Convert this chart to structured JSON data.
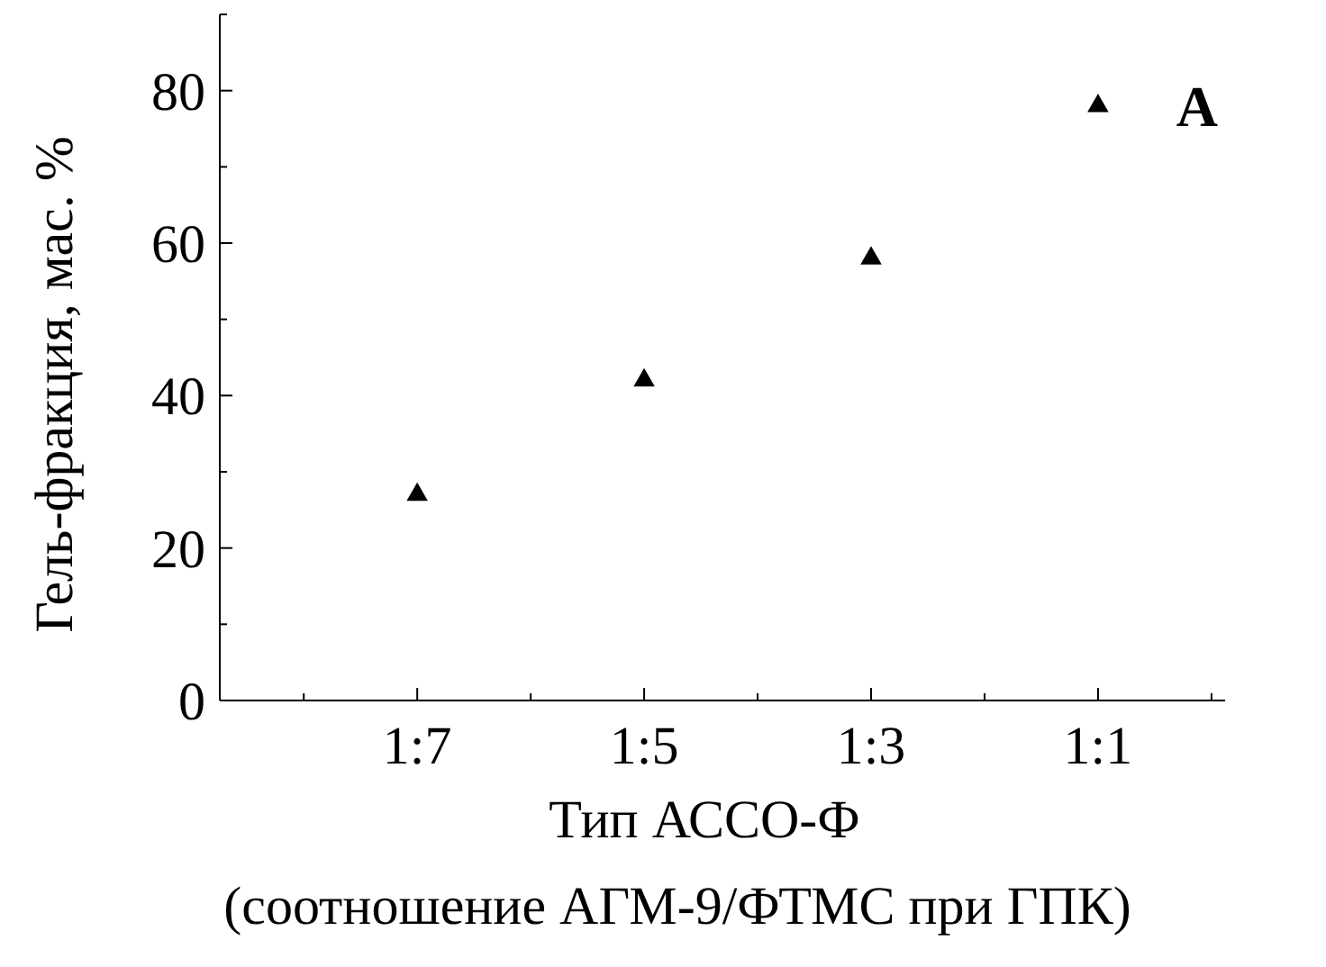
{
  "chart_data": {
    "type": "scatter",
    "xlabel": "Тип АССО-Ф\n(соотношение АГМ-9/ФТМС при ГПК)",
    "ylabel": "Гель-фракция, мас. %",
    "categories": [
      "1:7",
      "1:5",
      "1:3",
      "1:1"
    ],
    "series": [
      {
        "color": "#000000",
        "values": [
          27,
          42,
          58,
          78
        ]
      }
    ],
    "ylim": [
      0,
      90
    ],
    "yticks": [
      0,
      {
        "value": 10,
        "label": null
      },
      20,
      {
        "value": 30,
        "label": null
      },
      40,
      {
        "value": 50,
        "label": null
      },
      60,
      {
        "value": 70,
        "label": null
      },
      80,
      {
        "value": 90,
        "label": null
      }
    ],
    "marker": "triangle",
    "grid": false,
    "annotations": [
      "A"
    ]
  }
}
